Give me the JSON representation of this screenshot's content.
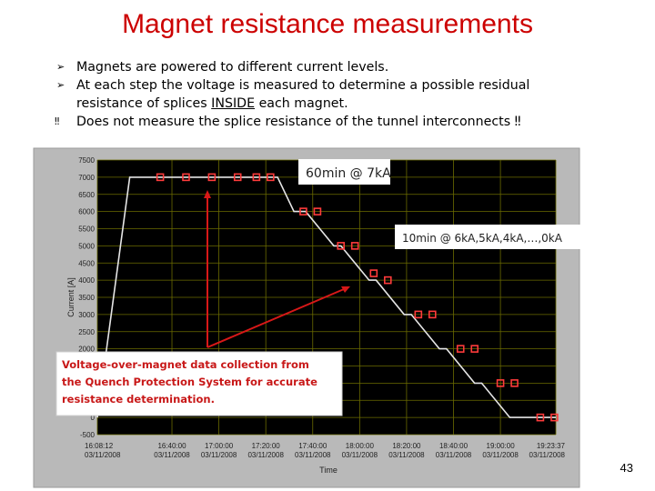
{
  "slide": {
    "title": "Magnet resistance measurements",
    "bullets": [
      {
        "marker": "➢",
        "text": "Magnets are powered to different current levels."
      },
      {
        "marker": "➢",
        "text": "At each step the voltage is measured to determine a possible residual"
      }
    ],
    "bullet2_cont_a": "resistance of splices ",
    "bullet2_cont_u": "INSIDE",
    "bullet2_cont_b": " each magnet.",
    "warning_marker": "‼",
    "warning_text": "Does not measure the splice resistance of the tunnel interconnects ‼",
    "slide_number": "43"
  },
  "chart_data": {
    "type": "line",
    "ylabel": "Current [A]",
    "xlabel": "Time",
    "ylim": [
      -500,
      7500
    ],
    "yticks": [
      7500,
      7000,
      6500,
      6000,
      5500,
      5000,
      4500,
      4000,
      3500,
      3000,
      2500,
      2000,
      1500,
      1000,
      500,
      0,
      -500
    ],
    "xticks": [
      {
        "time": "16:08:12",
        "date": "03/11/2008"
      },
      {
        "time": "16:40:00",
        "date": "03/11/2008"
      },
      {
        "time": "17:00:00",
        "date": "03/11/2008"
      },
      {
        "time": "17:20:00",
        "date": "03/11/2008"
      },
      {
        "time": "17:40:00",
        "date": "03/11/2008"
      },
      {
        "time": "18:00:00",
        "date": "03/11/2008"
      },
      {
        "time": "18:20:00",
        "date": "03/11/2008"
      },
      {
        "time": "18:40:00",
        "date": "03/11/2008"
      },
      {
        "time": "19:00:00",
        "date": "03/11/2008"
      },
      {
        "time": "19:23:37",
        "date": "03/11/2008"
      }
    ],
    "series": [
      {
        "x": [
          "16:08:12",
          "16:22",
          "16:50",
          "17:25",
          "17:32",
          "17:37",
          "17:49",
          "17:52",
          "18:04",
          "18:07",
          "18:19",
          "18:22",
          "18:34",
          "18:37",
          "18:49",
          "18:52",
          "19:04",
          "19:23:37"
        ],
        "values": [
          0,
          7000,
          7000,
          7000,
          6000,
          6000,
          5000,
          5000,
          4000,
          4000,
          3000,
          3000,
          2000,
          2000,
          1000,
          1000,
          0,
          0
        ]
      }
    ],
    "markers": [
      {
        "x": "16:35",
        "y": 7000
      },
      {
        "x": "16:46",
        "y": 7000
      },
      {
        "x": "16:57",
        "y": 7000
      },
      {
        "x": "17:08",
        "y": 7000
      },
      {
        "x": "17:16",
        "y": 7000
      },
      {
        "x": "17:22",
        "y": 7000
      },
      {
        "x": "17:36",
        "y": 6000
      },
      {
        "x": "17:42",
        "y": 6000
      },
      {
        "x": "17:52",
        "y": 5000
      },
      {
        "x": "17:58",
        "y": 5000
      },
      {
        "x": "18:06",
        "y": 4200
      },
      {
        "x": "18:12",
        "y": 4000
      },
      {
        "x": "18:25",
        "y": 3000
      },
      {
        "x": "18:31",
        "y": 3000
      },
      {
        "x": "18:43",
        "y": 2000
      },
      {
        "x": "18:49",
        "y": 2000
      },
      {
        "x": "19:00",
        "y": 1000
      },
      {
        "x": "19:06",
        "y": 1000
      },
      {
        "x": "19:17",
        "y": 0
      },
      {
        "x": "19:23",
        "y": 0
      }
    ],
    "annotations": [
      "60min @ 7kA",
      "10min @ 6kA,5kA,4kA,…,0kA",
      "Voltage-over-magnet data collection from",
      "the Quench Protection System for accurate",
      "resistance determination."
    ],
    "grid": true,
    "colors": {
      "plot_bg": "#000000",
      "grid": "#6b6b00",
      "line": "#e6e6e6",
      "marker": "#ff3b3b",
      "arrow": "#d81818",
      "frame": "#b9b9b9",
      "title": "#cc0000"
    }
  }
}
